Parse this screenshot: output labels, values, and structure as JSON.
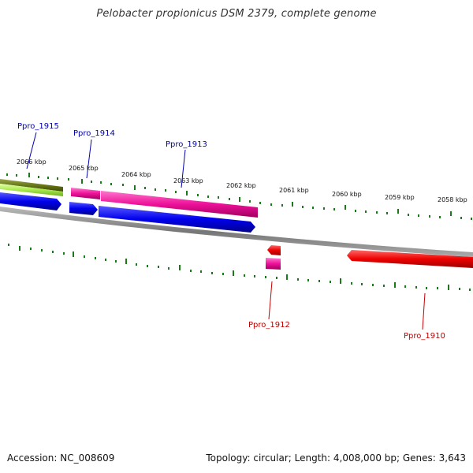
{
  "title": "Pelobacter propionicus DSM 2379, complete genome",
  "footer": {
    "accession": "Accession: NC_008609",
    "summary": "Topology: circular; Length: 4,008,000 bp; Genes: 3,643"
  },
  "ticks": [
    "2066 kbp",
    "2065 kbp",
    "2064 kbp",
    "2063 kbp",
    "2062 kbp",
    "2061 kbp",
    "2060 kbp",
    "2059 kbp",
    "2058 kbp"
  ],
  "genes": [
    {
      "label": "Ppro_1915",
      "strand": "forward",
      "color": "#0000b0"
    },
    {
      "label": "Ppro_1914",
      "strand": "forward",
      "color": "#0000b0"
    },
    {
      "label": "Ppro_1913",
      "strand": "forward",
      "color": "#0000b0"
    },
    {
      "label": "Ppro_1912",
      "strand": "reverse",
      "color": "#c00000"
    },
    {
      "label": "Ppro_1910",
      "strand": "reverse",
      "color": "#c00000"
    }
  ],
  "colors": {
    "cds_forward": "#0000ee",
    "cds_reverse": "#ee0000",
    "gene_magenta": "#ee1199",
    "olive_track": "#6b7a1a",
    "lime_track": "#a8e84a",
    "backbone": "#888888",
    "tick": "#1a7a1a"
  }
}
